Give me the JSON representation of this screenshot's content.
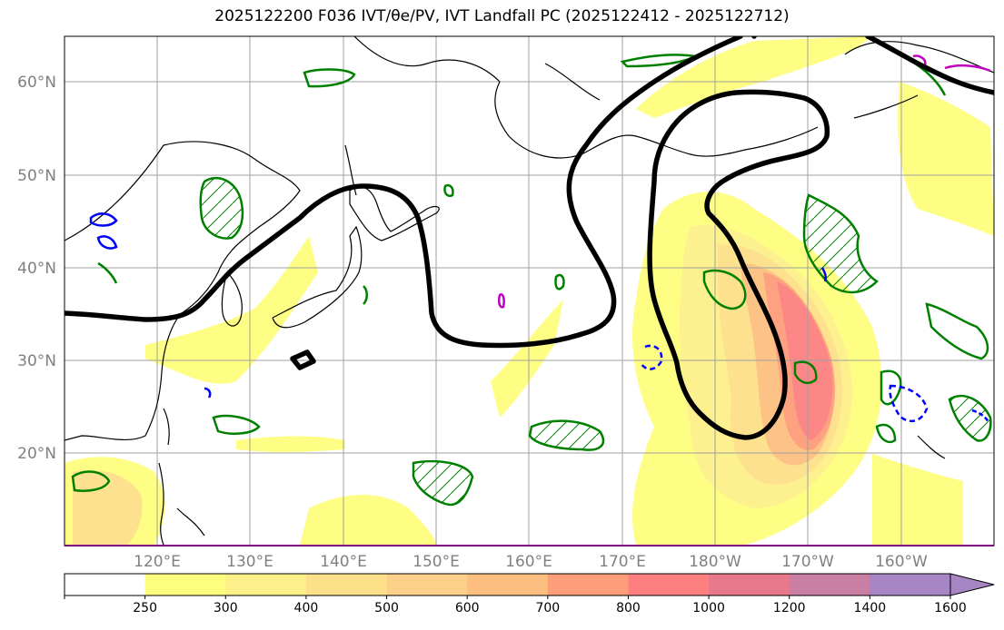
{
  "title": "2025122200 F036 IVT/θe/PV, IVT Landfall PC (2025122412 - 2025122712)",
  "lat_labels": [
    "60°N",
    "50°N",
    "40°N",
    "30°N",
    "20°N"
  ],
  "lon_labels": [
    "120°E",
    "130°E",
    "140°E",
    "150°E",
    "160°E",
    "170°E",
    "180°W",
    "170°W",
    "160°W"
  ],
  "colorbar": {
    "labels": [
      "250",
      "300",
      "400",
      "500",
      "600",
      "700",
      "800",
      "1000",
      "1200",
      "1400",
      "1600"
    ],
    "colors": [
      "#ffffff",
      "#fefe7e",
      "#fdf08a",
      "#fde08a",
      "#fdd08a",
      "#fdbf7f",
      "#fd9d7a",
      "#fd8080",
      "#e8788a",
      "#c97ea3",
      "#a886c6"
    ]
  },
  "colors": {
    "theta_e": "#008000",
    "pv_dashed": "#0000ff",
    "pv_magenta": "#c000c0",
    "ivt_contour": "#000000"
  }
}
